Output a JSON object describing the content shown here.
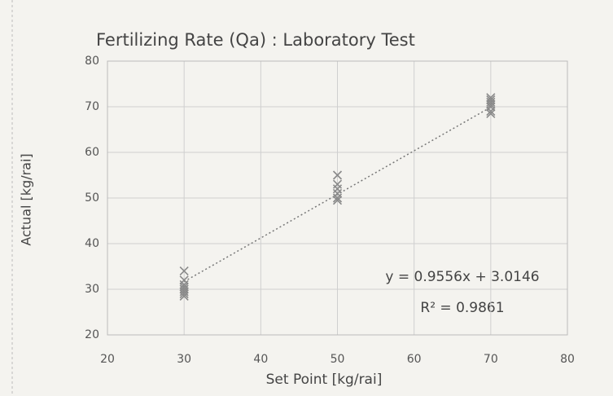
{
  "chart_data": {
    "type": "scatter",
    "title": "Fertilizing Rate (Qa) : Laboratory Test",
    "x_label": "Set Point [kg/rai]",
    "y_label": "Actual [kg/rai]",
    "xlim": [
      20,
      80
    ],
    "xticks": [
      20,
      30,
      40,
      50,
      60,
      70,
      80
    ],
    "ylim": [
      20,
      80
    ],
    "yticks": [
      20,
      30,
      40,
      50,
      60,
      70,
      80
    ],
    "grid": true,
    "series": [
      {
        "color": "#8a8a8a",
        "x": [
          30,
          30,
          30,
          30,
          30,
          30,
          30,
          30,
          50,
          50,
          50,
          50,
          50,
          50,
          70,
          70,
          70,
          70,
          70,
          70,
          70
        ],
        "values": [
          34,
          32,
          31,
          30.5,
          30,
          29.5,
          29,
          28.5,
          55,
          53,
          52,
          51,
          50,
          49.5,
          72,
          71.5,
          71,
          70.5,
          70,
          69,
          68.5
        ]
      }
    ],
    "trendline": {
      "equation": "y = 0.9556x + 3.0146",
      "slope": 0.9556,
      "intercept": 3.0146,
      "r_squared_label": "R² = 0.9861",
      "r_squared": 0.9861,
      "color": "#777777"
    }
  }
}
